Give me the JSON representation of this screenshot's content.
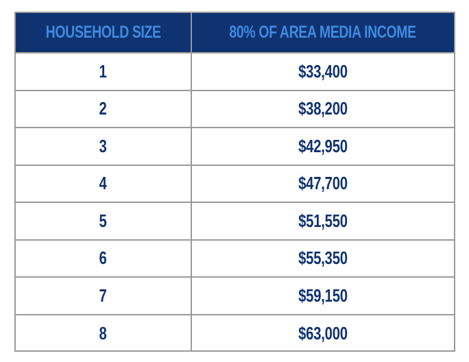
{
  "table": {
    "headers": [
      "HOUSEHOLD SIZE",
      "80% OF AREA MEDIA INCOME"
    ],
    "rows": [
      {
        "size": "1",
        "income": "$33,400"
      },
      {
        "size": "2",
        "income": "$38,200"
      },
      {
        "size": "3",
        "income": "$42,950"
      },
      {
        "size": "4",
        "income": "$47,700"
      },
      {
        "size": "5",
        "income": "$51,550"
      },
      {
        "size": "6",
        "income": "$55,350"
      },
      {
        "size": "7",
        "income": "$59,150"
      },
      {
        "size": "8",
        "income": "$63,000"
      }
    ]
  },
  "colors": {
    "header_bg": "#0f3270",
    "header_text": "#3f8ae0",
    "cell_text": "#0f3270",
    "grid": "#9a9a9a"
  }
}
